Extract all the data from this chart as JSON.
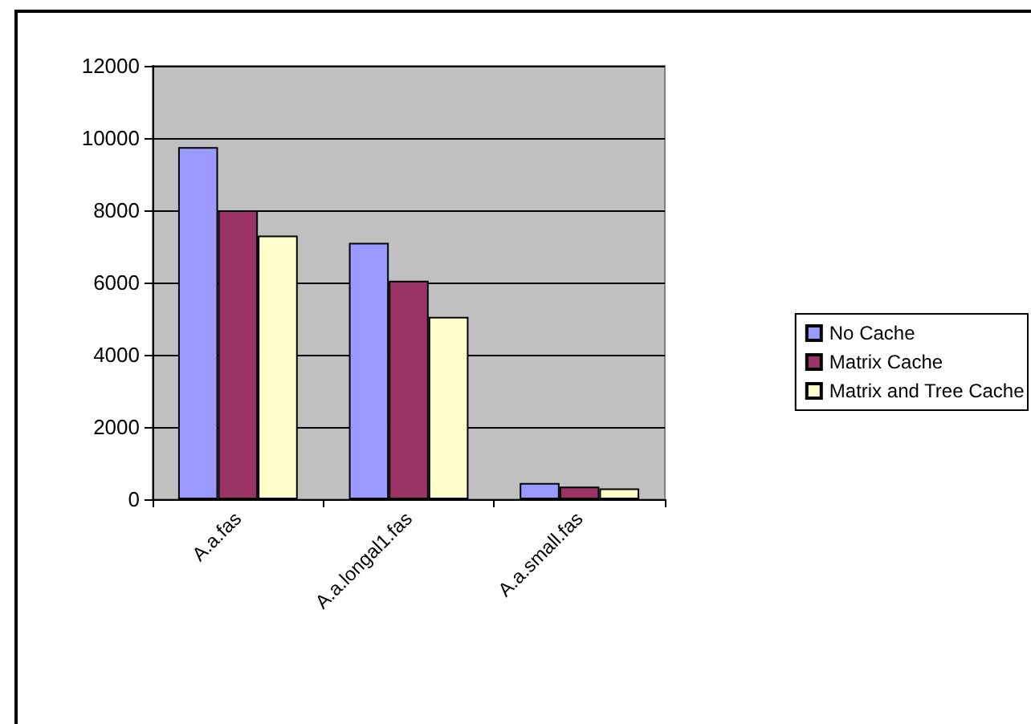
{
  "chart_data": {
    "type": "bar",
    "categories": [
      "A.a.fas",
      "A.a.longal1.fas",
      "A.a.small.fas"
    ],
    "series": [
      {
        "name": "No Cache",
        "color": "#9999ff",
        "values": [
          9750,
          7100,
          450
        ]
      },
      {
        "name": "Matrix Cache",
        "color": "#993366",
        "values": [
          8000,
          6050,
          350
        ]
      },
      {
        "name": "Matrix and Tree Cache",
        "color": "#ffffcc",
        "values": [
          7300,
          5050,
          300
        ]
      }
    ],
    "ylim": [
      0,
      12000
    ],
    "yticks": [
      0,
      2000,
      4000,
      6000,
      8000,
      10000,
      12000
    ],
    "grid": "y",
    "legend": "right"
  }
}
